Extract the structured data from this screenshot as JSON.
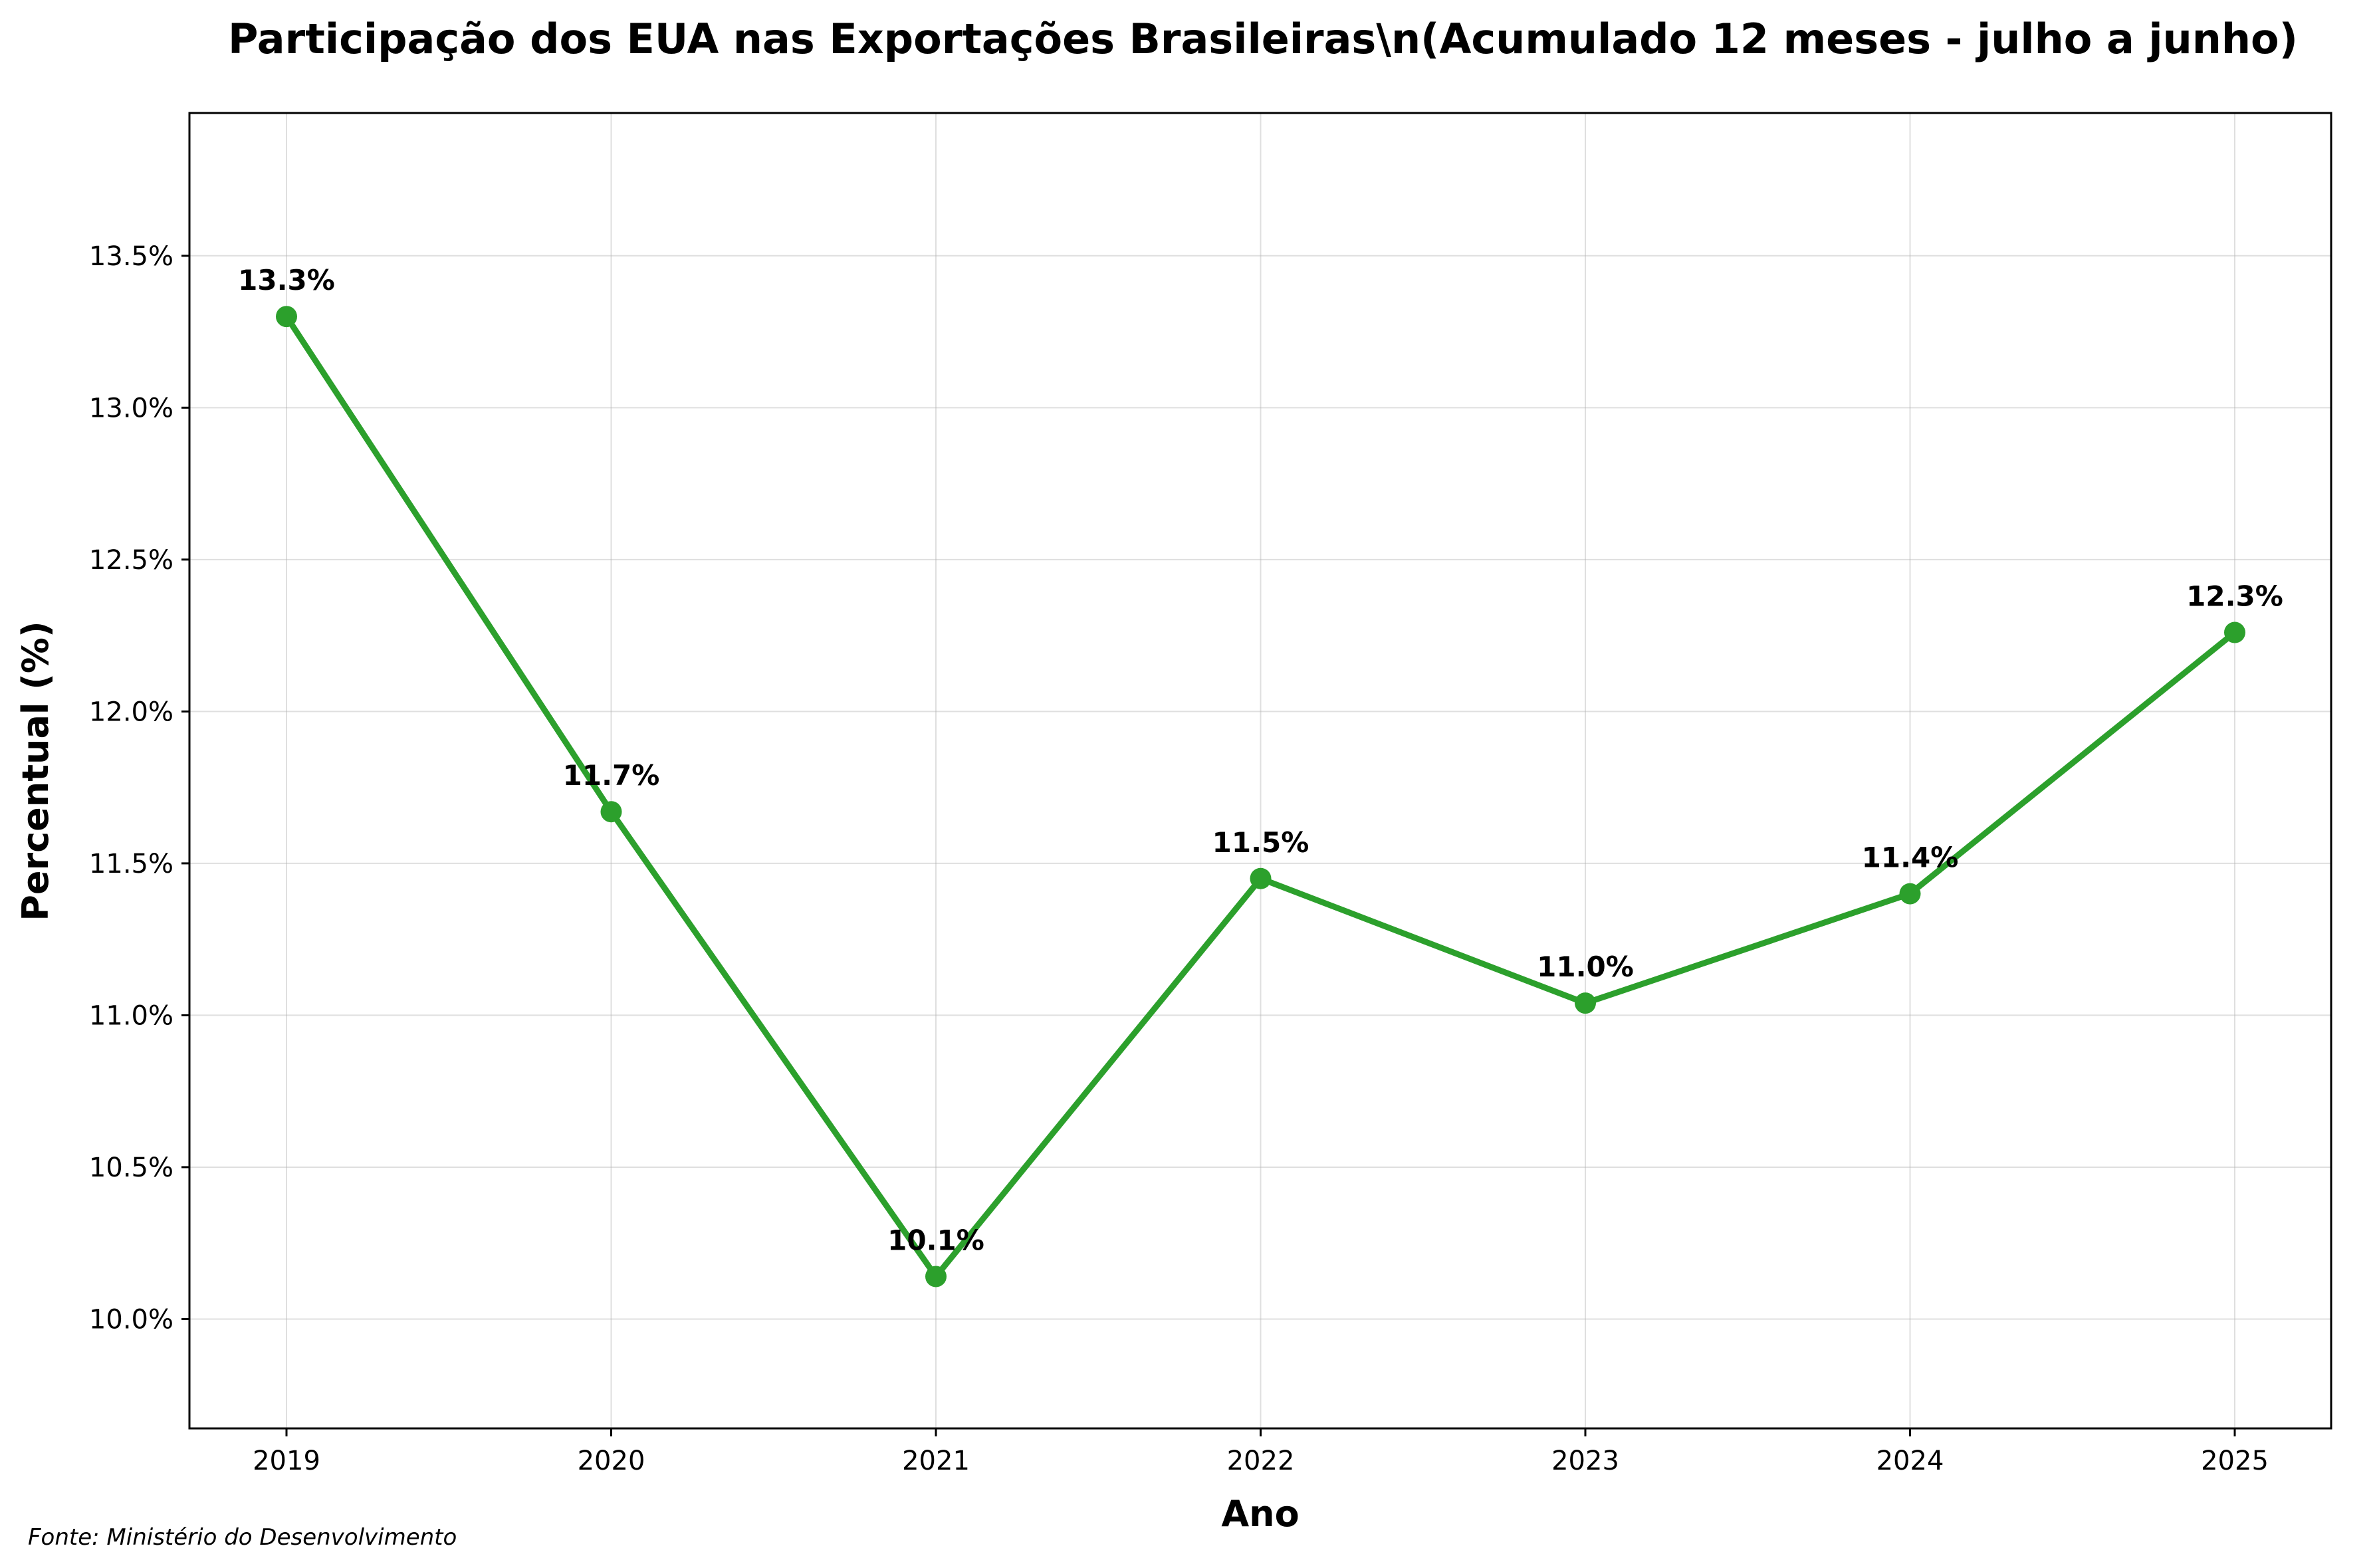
{
  "chart_data": {
    "type": "line",
    "title": "Participação dos EUA nas Exportações Brasileiras\\n(Acumulado 12 meses - julho a junho)",
    "xlabel": "Ano",
    "ylabel": "Percentual (%)",
    "categories": [
      "2019",
      "2020",
      "2021",
      "2022",
      "2023",
      "2024",
      "2025"
    ],
    "series": [
      {
        "values": [
          13.3,
          11.67,
          10.14,
          11.45,
          11.04,
          11.4,
          12.26
        ],
        "labels": [
          "13.3%",
          "11.7%",
          "10.1%",
          "11.5%",
          "11.0%",
          "11.4%",
          "12.3%"
        ],
        "color": "#2ca02c"
      }
    ],
    "yticks": [
      10.0,
      10.5,
      11.0,
      11.5,
      12.0,
      12.5,
      13.0,
      13.5
    ],
    "ytick_labels": [
      "10.0%",
      "10.5%",
      "11.0%",
      "11.5%",
      "12.0%",
      "12.5%",
      "13.0%",
      "13.5%"
    ],
    "ylim": [
      9.64,
      13.97
    ],
    "grid": true,
    "source": "Fonte: Ministério do Desenvolvimento"
  }
}
